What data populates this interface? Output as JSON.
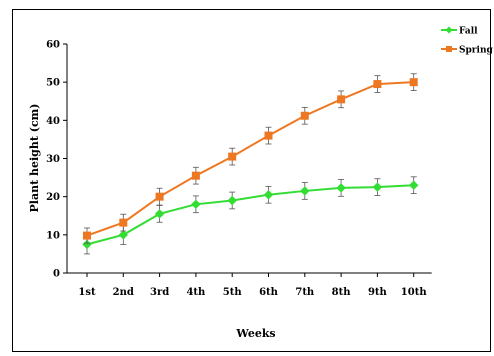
{
  "chart_data": {
    "type": "line",
    "categories": [
      "1st",
      "2nd",
      "3rd",
      "4th",
      "5th",
      "6th",
      "7th",
      "8th",
      "9th",
      "10th"
    ],
    "xlabel": "Weeks",
    "ylabel": "Plant height (cm)",
    "ylim": [
      0,
      60
    ],
    "yticks": [
      0,
      10,
      20,
      30,
      40,
      50,
      60
    ],
    "grid": false,
    "legend": "top-right",
    "series": [
      {
        "name": "Fall",
        "color": "#33dd33",
        "marker": "diamond",
        "values": [
          7.5,
          10,
          15.5,
          18,
          19,
          20.5,
          21.5,
          22.3,
          22.5,
          23
        ],
        "errors": [
          2.5,
          2.5,
          2.2,
          2.2,
          2.2,
          2.2,
          2.2,
          2.2,
          2.2,
          2.2
        ]
      },
      {
        "name": "Spring",
        "color": "#ee7722",
        "marker": "square",
        "values": [
          9.8,
          13.2,
          20,
          25.5,
          30.5,
          36,
          41.2,
          45.5,
          49.5,
          50
        ],
        "errors": [
          2,
          2.2,
          2.2,
          2.2,
          2.2,
          2.2,
          2.2,
          2.2,
          2.2,
          2.2
        ]
      }
    ]
  }
}
